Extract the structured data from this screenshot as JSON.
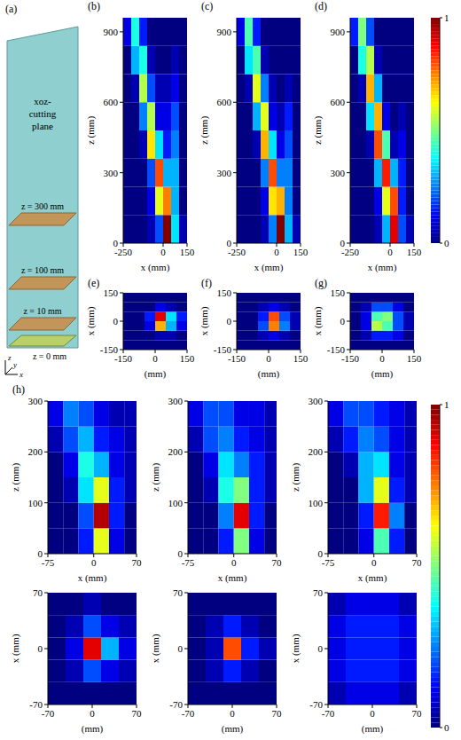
{
  "diagram": {
    "label": "(a)",
    "box_label": "xoz-cutting plane",
    "planes": [
      "z = 300 mm",
      "z = 100 mm",
      "z = 10 mm"
    ],
    "base_label": "z = 0 mm",
    "axes": [
      "z",
      "y",
      "x"
    ]
  },
  "chart_data": [
    {
      "type": "heatmap",
      "title": "(b)",
      "x_label": "x (mm)",
      "y_label": "z (mm)",
      "xlim": [
        -250,
        150
      ],
      "xticks": [
        -250,
        0,
        150
      ],
      "ylim": [
        0,
        960
      ],
      "yticks": [
        0,
        300,
        600,
        900
      ],
      "cells": {
        "x_bins": [
          -250,
          -200,
          -150,
          -100,
          -50,
          0,
          50,
          100,
          150
        ],
        "y_bins": [
          0,
          120,
          240,
          360,
          480,
          600,
          720,
          840,
          960
        ],
        "values": [
          [
            0,
            0,
            0,
            0.05,
            0.2,
            1.0,
            0.35,
            0.05
          ],
          [
            0,
            0,
            0,
            0.1,
            0.6,
            0.75,
            0.3,
            0
          ],
          [
            0,
            0,
            0,
            0.2,
            0.8,
            0.3,
            0.3,
            0
          ],
          [
            0,
            0,
            0.05,
            0.65,
            0.35,
            0.15,
            0.25,
            0
          ],
          [
            0,
            0,
            0.25,
            0.55,
            0.1,
            0.1,
            0.2,
            0
          ],
          [
            0,
            0.05,
            0.55,
            0.2,
            0.05,
            0.05,
            0.1,
            0
          ],
          [
            0,
            0.3,
            0.4,
            0.05,
            0,
            0,
            0.05,
            0
          ],
          [
            0.1,
            0.4,
            0.15,
            0,
            0,
            0,
            0,
            0
          ]
        ]
      }
    },
    {
      "type": "heatmap",
      "title": "(c)",
      "x_label": "x (mm)",
      "y_label": "z (mm)",
      "xlim": [
        -250,
        150
      ],
      "xticks": [
        -250,
        0,
        150
      ],
      "ylim": [
        0,
        960
      ],
      "yticks": [
        0,
        300,
        600,
        900
      ],
      "cells": {
        "x_bins": [
          -250,
          -200,
          -150,
          -100,
          -50,
          0,
          50,
          100,
          150
        ],
        "y_bins": [
          0,
          120,
          240,
          360,
          480,
          600,
          720,
          840,
          960
        ],
        "values": [
          [
            0,
            0,
            0,
            0.05,
            0.25,
            1.0,
            0.3,
            0.05
          ],
          [
            0,
            0,
            0,
            0.1,
            0.65,
            0.7,
            0.25,
            0
          ],
          [
            0,
            0,
            0,
            0.25,
            0.8,
            0.25,
            0.25,
            0
          ],
          [
            0,
            0,
            0.05,
            0.7,
            0.35,
            0.1,
            0.2,
            0
          ],
          [
            0,
            0,
            0.3,
            0.6,
            0.1,
            0.05,
            0.15,
            0
          ],
          [
            0,
            0.05,
            0.6,
            0.25,
            0.05,
            0,
            0.05,
            0
          ],
          [
            0,
            0.35,
            0.45,
            0.05,
            0,
            0,
            0,
            0
          ],
          [
            0.1,
            0.45,
            0.15,
            0,
            0,
            0,
            0,
            0
          ]
        ]
      }
    },
    {
      "type": "heatmap",
      "title": "(d)",
      "x_label": "x (mm)",
      "y_label": "z (mm)",
      "xlim": [
        -250,
        150
      ],
      "xticks": [
        -250,
        0,
        150
      ],
      "ylim": [
        0,
        960
      ],
      "yticks": [
        0,
        300,
        600,
        900
      ],
      "cells": {
        "x_bins": [
          -250,
          -200,
          -150,
          -100,
          -50,
          0,
          50,
          100,
          150
        ],
        "y_bins": [
          0,
          120,
          240,
          360,
          480,
          600,
          720,
          840,
          960
        ],
        "values": [
          [
            0,
            0,
            0,
            0.05,
            0.3,
            0.9,
            0.2,
            0.05
          ],
          [
            0,
            0,
            0,
            0.1,
            0.6,
            0.8,
            0.15,
            0
          ],
          [
            0,
            0,
            0,
            0.3,
            0.85,
            0.3,
            0.15,
            0
          ],
          [
            0,
            0,
            0.05,
            0.8,
            0.45,
            0.05,
            0.1,
            0
          ],
          [
            0,
            0,
            0.35,
            0.7,
            0.1,
            0,
            0.05,
            0
          ],
          [
            0,
            0.05,
            0.7,
            0.3,
            0,
            0,
            0,
            0
          ],
          [
            0,
            0.4,
            0.55,
            0.05,
            0,
            0,
            0,
            0
          ],
          [
            0.15,
            0.5,
            0.2,
            0,
            0,
            0,
            0,
            0
          ]
        ]
      }
    },
    {
      "type": "colorbar",
      "ylim": [
        0,
        1
      ],
      "yticks": [
        0,
        1
      ]
    },
    {
      "type": "heatmap",
      "title": "(e)",
      "x_label": "(mm)",
      "y_label": "x (mm)",
      "xlim": [
        -150,
        150
      ],
      "xticks": [
        -150,
        0,
        150
      ],
      "ylim": [
        -150,
        150
      ],
      "yticks": [
        -150,
        0,
        150
      ],
      "cells": {
        "x_bins": [
          -150,
          -100,
          -50,
          0,
          50,
          100,
          150
        ],
        "y_bins": [
          -150,
          -100,
          -50,
          0,
          50,
          100,
          150
        ],
        "values": [
          [
            0,
            0,
            0,
            0,
            0,
            0
          ],
          [
            0,
            0,
            0,
            0.05,
            0.05,
            0
          ],
          [
            0,
            0,
            0.1,
            0.7,
            0.3,
            0.1
          ],
          [
            0,
            0,
            0.15,
            0.9,
            0.35,
            0.15
          ],
          [
            0,
            0,
            0,
            0.1,
            0.05,
            0
          ],
          [
            0,
            0,
            0,
            0,
            0,
            0
          ]
        ]
      }
    },
    {
      "type": "heatmap",
      "title": "(f)",
      "x_label": "(mm)",
      "y_label": "x (mm)",
      "xlim": [
        -150,
        150
      ],
      "xticks": [
        -150,
        0,
        150
      ],
      "ylim": [
        -150,
        150
      ],
      "yticks": [
        -150,
        0,
        150
      ],
      "cells": {
        "x_bins": [
          -150,
          -100,
          -50,
          0,
          50,
          100,
          150
        ],
        "y_bins": [
          -150,
          -100,
          -50,
          0,
          50,
          100,
          150
        ],
        "values": [
          [
            0,
            0,
            0,
            0,
            0,
            0
          ],
          [
            0,
            0,
            0.05,
            0.1,
            0.05,
            0
          ],
          [
            0,
            0,
            0.2,
            0.75,
            0.25,
            0.05
          ],
          [
            0,
            0,
            0.15,
            0.8,
            0.2,
            0.05
          ],
          [
            0,
            0,
            0.05,
            0.1,
            0.05,
            0
          ],
          [
            0,
            0,
            0,
            0,
            0,
            0
          ]
        ]
      }
    },
    {
      "type": "heatmap",
      "title": "(g)",
      "x_label": "(mm)",
      "y_label": "x (mm)",
      "xlim": [
        -150,
        150
      ],
      "xticks": [
        -150,
        0,
        150
      ],
      "ylim": [
        -150,
        150
      ],
      "yticks": [
        -150,
        0,
        150
      ],
      "cells": {
        "x_bins": [
          -150,
          -100,
          -50,
          0,
          50,
          100,
          150
        ],
        "y_bins": [
          -150,
          -100,
          -50,
          0,
          50,
          100,
          150
        ],
        "values": [
          [
            0,
            0,
            0,
            0,
            0,
            0
          ],
          [
            0,
            0.05,
            0.15,
            0.15,
            0.1,
            0
          ],
          [
            0,
            0.1,
            0.55,
            0.45,
            0.2,
            0.05
          ],
          [
            0,
            0.1,
            0.45,
            0.5,
            0.2,
            0.05
          ],
          [
            0,
            0.05,
            0.2,
            0.2,
            0.1,
            0
          ],
          [
            0,
            0,
            0,
            0,
            0,
            0
          ]
        ]
      }
    },
    {
      "type": "heatmap",
      "title": "(h)",
      "x_label": "x (mm)",
      "y_label": "z (mm)",
      "xlim": [
        -75,
        70
      ],
      "xticks": [
        -75,
        0,
        70
      ],
      "ylim": [
        0,
        300
      ],
      "yticks": [
        0,
        100,
        200,
        300
      ],
      "cells": {
        "x_bins": [
          -75,
          -50,
          -25,
          0,
          25,
          50,
          70
        ],
        "y_bins": [
          0,
          50,
          100,
          150,
          200,
          250,
          300
        ],
        "values": [
          [
            0,
            0,
            0.15,
            0.6,
            0.1,
            0
          ],
          [
            0,
            0,
            0.2,
            0.95,
            0.15,
            0
          ],
          [
            0,
            0.05,
            0.35,
            0.6,
            0.15,
            0.05
          ],
          [
            0,
            0.1,
            0.4,
            0.3,
            0.1,
            0.05
          ],
          [
            0.05,
            0.2,
            0.3,
            0.15,
            0.1,
            0.05
          ],
          [
            0.1,
            0.25,
            0.2,
            0.1,
            0.05,
            0.05
          ]
        ]
      }
    },
    {
      "type": "heatmap",
      "x_label": "x (mm)",
      "y_label": "z (mm)",
      "xlim": [
        -75,
        70
      ],
      "xticks": [
        -75,
        0,
        70
      ],
      "ylim": [
        0,
        300
      ],
      "yticks": [
        0,
        100,
        200,
        300
      ],
      "cells": {
        "x_bins": [
          -75,
          -50,
          -25,
          0,
          25,
          50,
          70
        ],
        "y_bins": [
          0,
          50,
          100,
          150,
          200,
          250,
          300
        ],
        "values": [
          [
            0,
            0,
            0.15,
            0.5,
            0.1,
            0
          ],
          [
            0,
            0,
            0.25,
            0.9,
            0.15,
            0
          ],
          [
            0,
            0.05,
            0.4,
            0.5,
            0.15,
            0.05
          ],
          [
            0,
            0.1,
            0.35,
            0.25,
            0.15,
            0.05
          ],
          [
            0.05,
            0.2,
            0.25,
            0.15,
            0.1,
            0.05
          ],
          [
            0.1,
            0.2,
            0.2,
            0.1,
            0.1,
            0.05
          ]
        ]
      }
    },
    {
      "type": "heatmap",
      "x_label": "x (mm)",
      "y_label": "z (mm)",
      "xlim": [
        -75,
        70
      ],
      "xticks": [
        -75,
        0,
        70
      ],
      "ylim": [
        0,
        300
      ],
      "yticks": [
        0,
        100,
        200,
        300
      ],
      "cells": {
        "x_bins": [
          -75,
          -50,
          -25,
          0,
          25,
          50,
          70
        ],
        "y_bins": [
          0,
          50,
          100,
          150,
          200,
          250,
          300
        ],
        "values": [
          [
            0,
            0,
            0.1,
            0.45,
            0.15,
            0
          ],
          [
            0,
            0,
            0.15,
            0.85,
            0.25,
            0
          ],
          [
            0,
            0,
            0.3,
            0.6,
            0.15,
            0.05
          ],
          [
            0,
            0.05,
            0.3,
            0.35,
            0.1,
            0.05
          ],
          [
            0.05,
            0.15,
            0.25,
            0.2,
            0.1,
            0.05
          ],
          [
            0.1,
            0.2,
            0.2,
            0.15,
            0.1,
            0.05
          ]
        ]
      }
    },
    {
      "type": "heatmap",
      "x_label": "(mm)",
      "y_label": "x (mm)",
      "xlim": [
        -70,
        70
      ],
      "xticks": [
        -70,
        0,
        70
      ],
      "ylim": [
        -70,
        70
      ],
      "yticks": [
        -70,
        0,
        70
      ],
      "cells": {
        "x_bins": [
          -70,
          -42,
          -14,
          14,
          42,
          70
        ],
        "y_bins": [
          -70,
          -42,
          -14,
          14,
          42,
          70
        ],
        "values": [
          [
            0,
            0,
            0,
            0,
            0
          ],
          [
            0,
            0.05,
            0.2,
            0.1,
            0.05
          ],
          [
            0,
            0.1,
            0.9,
            0.3,
            0.1
          ],
          [
            0,
            0.05,
            0.2,
            0.1,
            0.05
          ],
          [
            0,
            0,
            0.05,
            0,
            0
          ]
        ]
      }
    },
    {
      "type": "heatmap",
      "x_label": "(mm)",
      "y_label": "x (mm)",
      "xlim": [
        -70,
        70
      ],
      "xticks": [
        -70,
        0,
        70
      ],
      "ylim": [
        -70,
        70
      ],
      "yticks": [
        -70,
        0,
        70
      ],
      "cells": {
        "x_bins": [
          -70,
          -42,
          -14,
          14,
          42,
          70
        ],
        "y_bins": [
          -70,
          -42,
          -14,
          14,
          42,
          70
        ],
        "values": [
          [
            0,
            0,
            0,
            0,
            0
          ],
          [
            0,
            0.05,
            0.15,
            0.05,
            0
          ],
          [
            0,
            0.05,
            0.8,
            0.15,
            0.05
          ],
          [
            0,
            0.05,
            0.15,
            0.05,
            0
          ],
          [
            0,
            0,
            0,
            0,
            0
          ]
        ]
      }
    },
    {
      "type": "heatmap",
      "x_label": "(mm)",
      "y_label": "x (mm)",
      "xlim": [
        -70,
        70
      ],
      "xticks": [
        -70,
        0,
        70
      ],
      "ylim": [
        -70,
        70
      ],
      "yticks": [
        -70,
        0,
        70
      ],
      "cells": {
        "x_bins": [
          -70,
          -42,
          -14,
          14,
          42,
          70
        ],
        "y_bins": [
          -70,
          -42,
          -14,
          14,
          42,
          70
        ],
        "values": [
          [
            0.05,
            0.1,
            0.1,
            0.1,
            0.05
          ],
          [
            0.1,
            0.15,
            0.15,
            0.15,
            0.1
          ],
          [
            0.1,
            0.15,
            0.15,
            0.15,
            0.1
          ],
          [
            0.1,
            0.15,
            0.15,
            0.15,
            0.1
          ],
          [
            0.05,
            0.1,
            0.1,
            0.1,
            0.05
          ]
        ]
      }
    },
    {
      "type": "colorbar",
      "ylim": [
        0,
        1
      ],
      "yticks": [
        0,
        1
      ]
    }
  ]
}
